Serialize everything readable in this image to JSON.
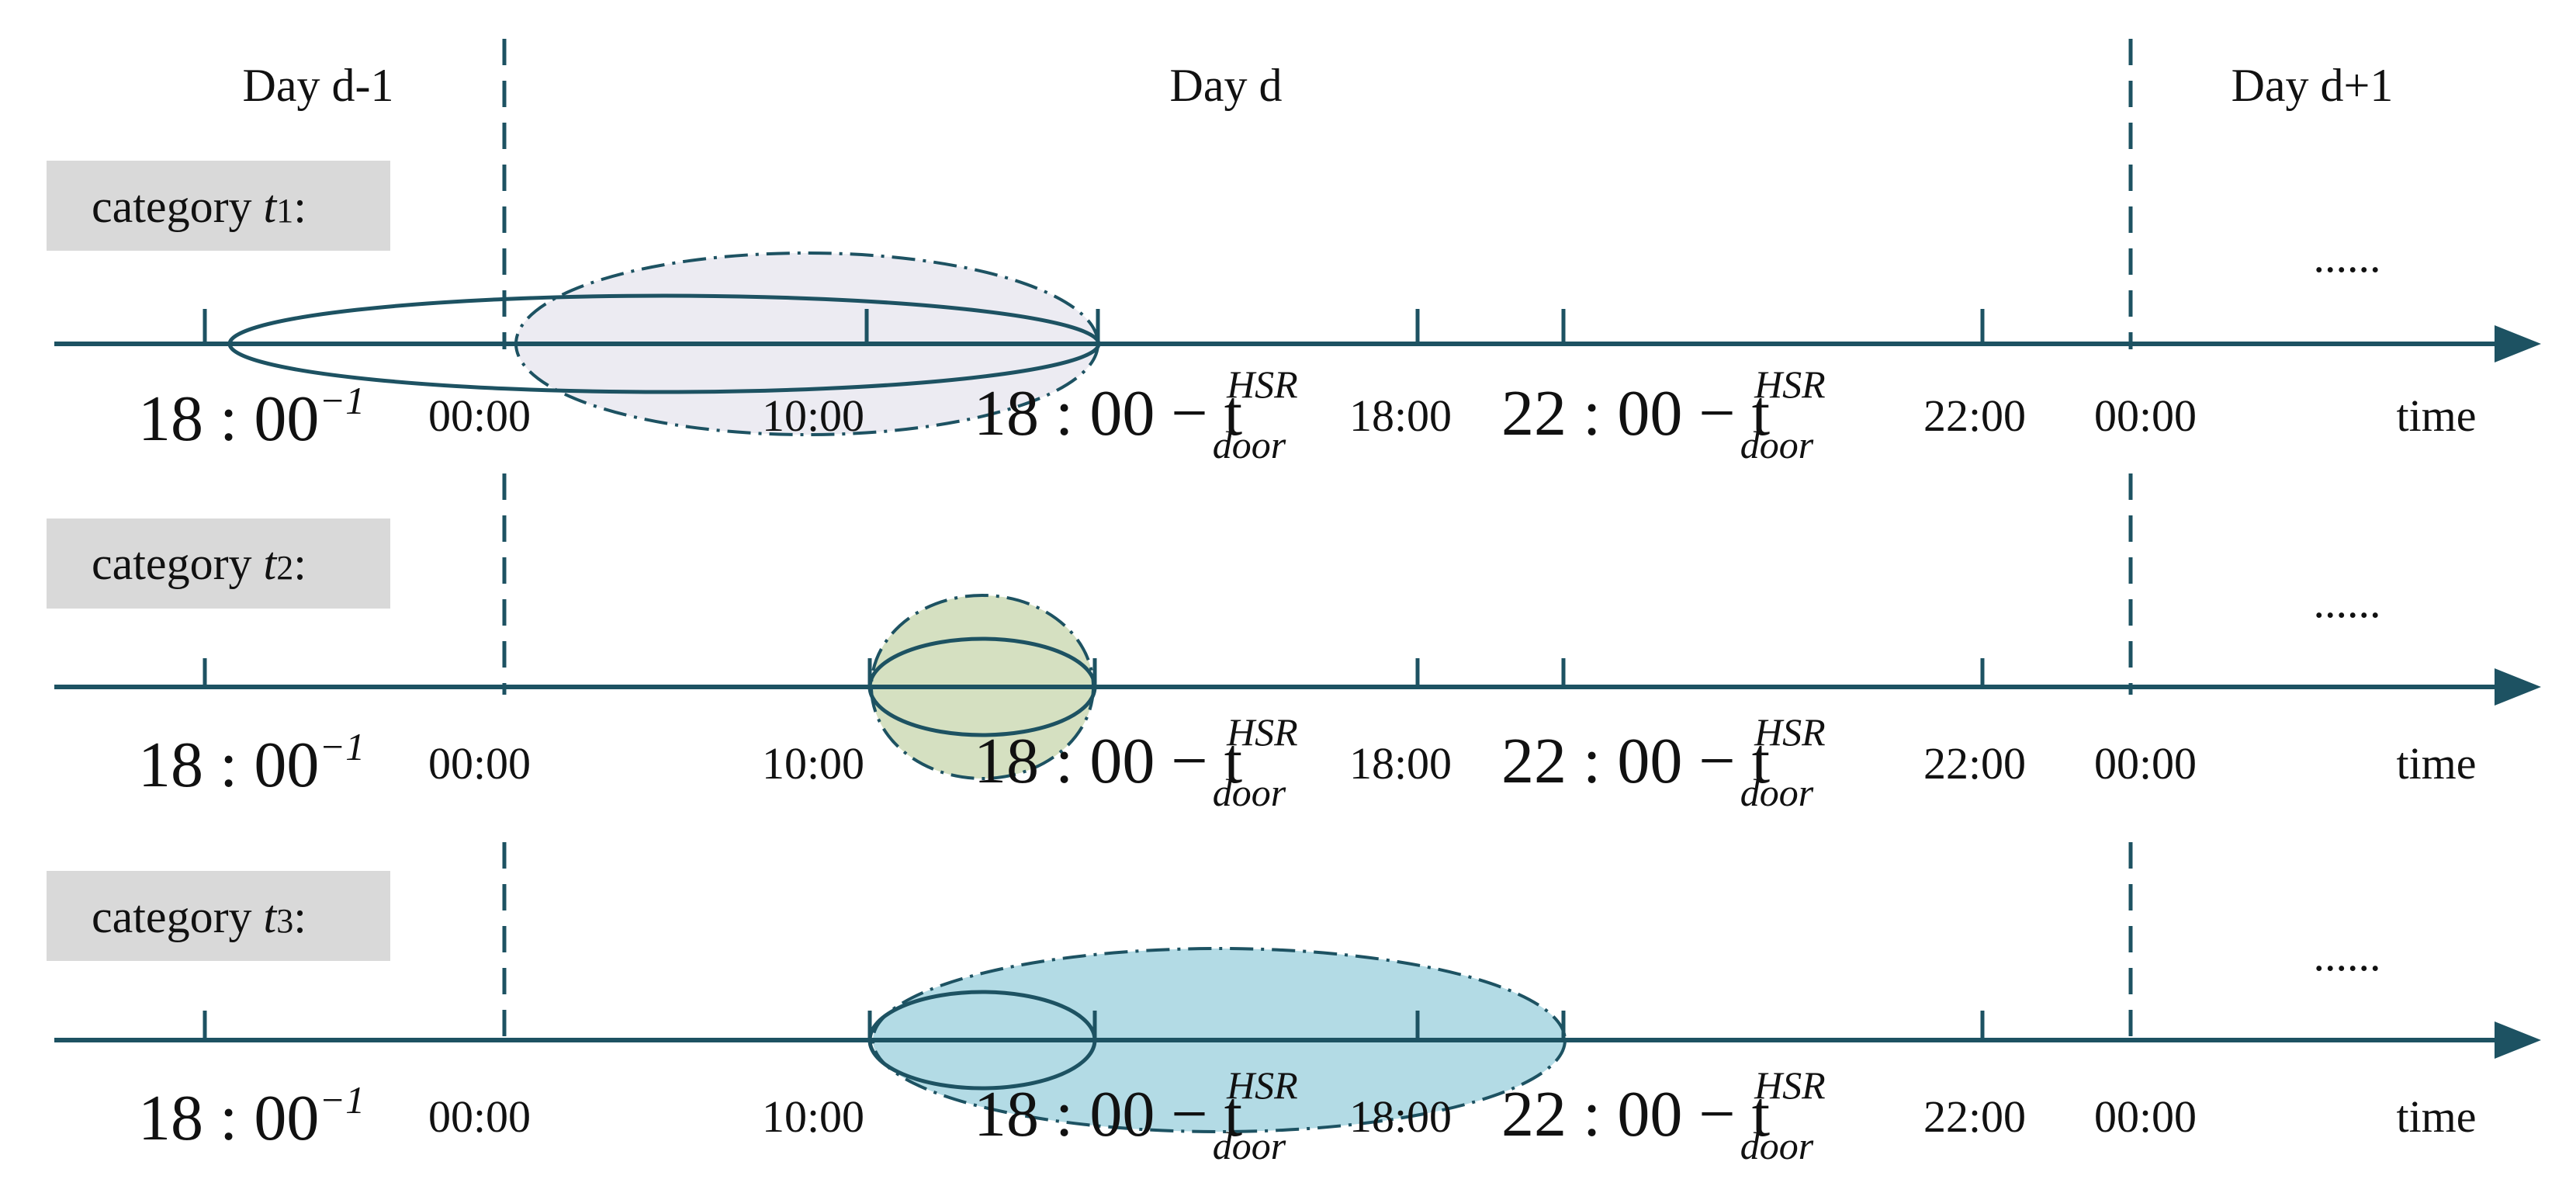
{
  "colors": {
    "axis": "#1d5262",
    "category_box": "#d9d9d9",
    "t1_fill": "#ecebf2",
    "t2_fill": "#d5e0c1",
    "t3_fill": "#b3dbe5"
  },
  "days": {
    "prev": "Day d-1",
    "current": "Day d",
    "next": "Day d+1"
  },
  "categories": [
    {
      "word": "category",
      "var": "t",
      "index": "1",
      "colon": ":"
    },
    {
      "word": "category",
      "var": "t",
      "index": "2",
      "colon": ":"
    },
    {
      "word": "category",
      "var": "t",
      "index": "3",
      "colon": ":"
    }
  ],
  "ellipsis": "......",
  "axis_labels": {
    "prev_1800_base": "18 : 00",
    "prev_1800_sup": "−1",
    "t0000": "00:00",
    "t1000": "10:00",
    "big_18_base": "18 : 00 − t",
    "big_22_base": "22 : 00 − t",
    "hsr": "HSR",
    "door": "door",
    "t1800": "18:00",
    "t2200": "22:00",
    "t0000_next": "00:00",
    "time": "time"
  }
}
